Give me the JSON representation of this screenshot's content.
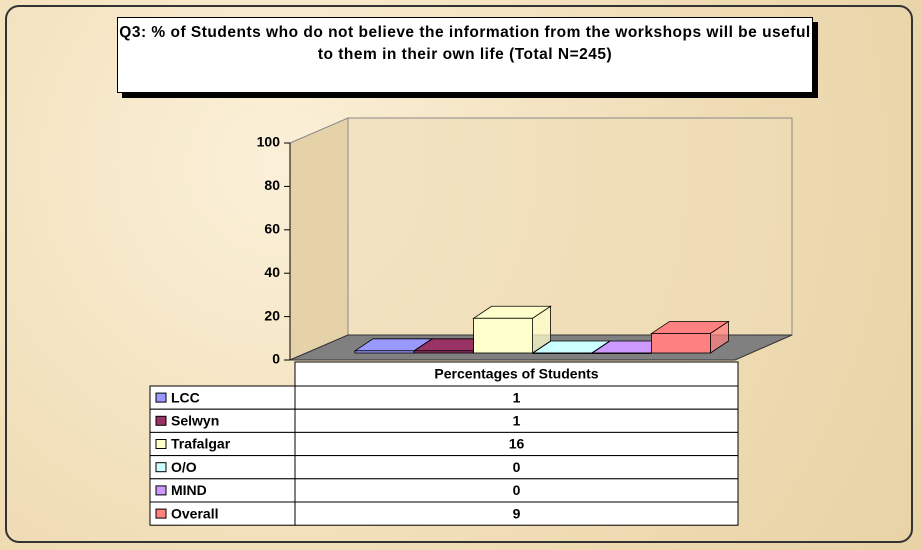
{
  "chart_data": {
    "type": "bar3d",
    "title": "Q3: % of Students who do not believe the information from the workshops will be useful to them in their own life (Total N=245)",
    "categories": [
      "Percentages of Students"
    ],
    "series": [
      {
        "name": "LCC",
        "color": "#9999ff",
        "values": [
          1
        ]
      },
      {
        "name": "Selwyn",
        "color": "#993366",
        "values": [
          1
        ]
      },
      {
        "name": "Trafalgar",
        "color": "#ffffcc",
        "values": [
          16
        ]
      },
      {
        "name": "O/O",
        "color": "#ccffff",
        "values": [
          0
        ]
      },
      {
        "name": "MIND",
        "color": "#cc99ff",
        "values": [
          0
        ]
      },
      {
        "name": "Overall",
        "color": "#ff8080",
        "values": [
          9
        ]
      }
    ],
    "ylim": [
      0,
      100
    ],
    "yticks": [
      0,
      20,
      40,
      60,
      80,
      100
    ],
    "grid": false
  }
}
